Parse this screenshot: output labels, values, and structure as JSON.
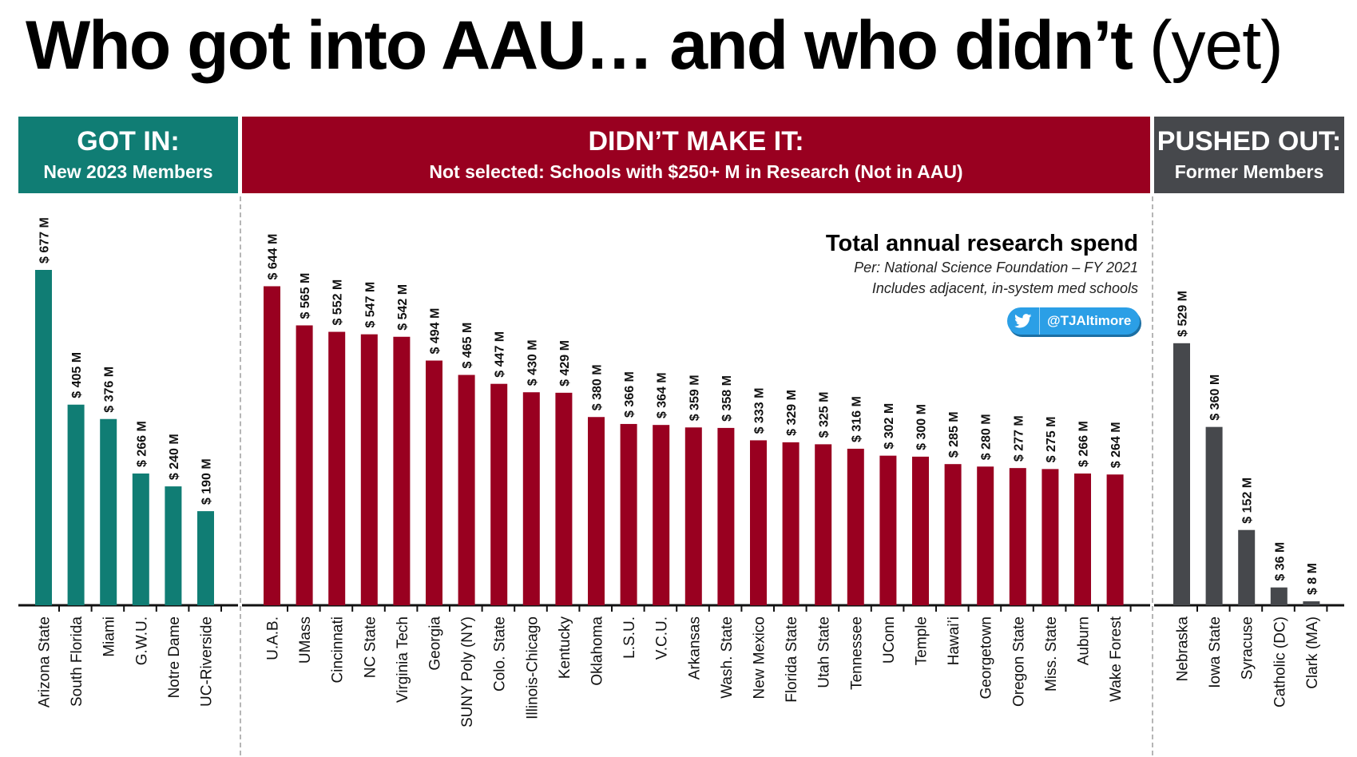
{
  "title": {
    "main": "Who got into AAU… and who didn’t",
    "suffix": "(yet)"
  },
  "headers": {
    "got_in": {
      "title": "GOT IN:",
      "subtitle": "New 2023 Members"
    },
    "didnt_make_it": {
      "title": "DIDN’T MAKE IT:",
      "subtitle": "Not selected:  Schools with $250+ M in Research (Not in AAU)"
    },
    "pushed_out": {
      "title": "PUSHED OUT:",
      "subtitle": "Former Members"
    }
  },
  "note": {
    "title": "Total annual research spend",
    "line1": "Per:  National Science Foundation – FY 2021",
    "line2": "Includes adjacent, in-system med schools"
  },
  "twitter": {
    "icon": "twitter-bird-icon",
    "handle": "@TJAltimore"
  },
  "colors": {
    "got_in": "#107d74",
    "didnt_make_it": "#990020",
    "pushed_out": "#46484c",
    "twitter": "#2b9fe6"
  },
  "chart_data": {
    "type": "bar",
    "ylabel": "",
    "ylim": [
      0,
      700
    ],
    "grid": false,
    "value_label_format": "$ {v} M",
    "groups": [
      {
        "name": "GOT IN",
        "color": "#107d74",
        "categories": [
          "Arizona State",
          "South Florida",
          "Miami",
          "G.W.U.",
          "Notre Dame",
          "UC-Riverside"
        ],
        "values": [
          677,
          405,
          376,
          266,
          240,
          190
        ]
      },
      {
        "name": "DIDN’T MAKE IT",
        "color": "#990020",
        "categories": [
          "U.A.B.",
          "UMass",
          "Cincinnati",
          "NC State",
          "Virginia Tech",
          "Georgia",
          "SUNY Poly (NY)",
          "Colo. State",
          "Illinois-Chicago",
          "Kentucky",
          "Oklahoma",
          "L.S.U.",
          "V.C.U.",
          "Arkansas",
          "Wash. State",
          "New Mexico",
          "Florida State",
          "Utah State",
          "Tennessee",
          "UConn",
          "Temple",
          "Hawai’i",
          "Georgetown",
          "Oregon State",
          "Miss. State",
          "Auburn",
          "Wake Forest"
        ],
        "values": [
          644,
          565,
          552,
          547,
          542,
          494,
          465,
          447,
          430,
          429,
          380,
          366,
          364,
          359,
          358,
          333,
          329,
          325,
          316,
          302,
          300,
          285,
          280,
          277,
          275,
          266,
          264
        ]
      },
      {
        "name": "PUSHED OUT",
        "color": "#46484c",
        "categories": [
          "Nebraska",
          "Iowa State",
          "Syracuse",
          "Catholic (DC)",
          "Clark (MA)"
        ],
        "values": [
          529,
          360,
          152,
          36,
          8
        ]
      }
    ]
  }
}
